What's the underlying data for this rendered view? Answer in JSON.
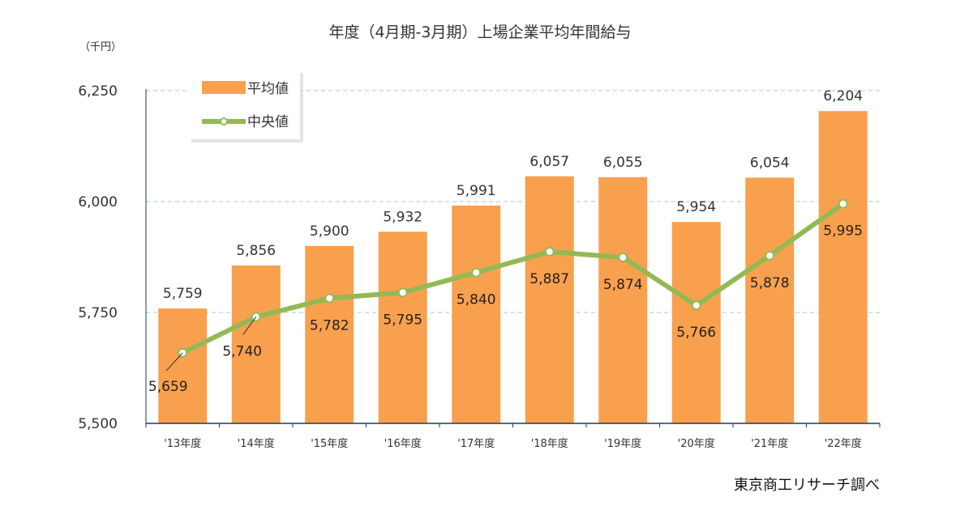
{
  "chart_data": {
    "type": "bar",
    "title": "年度（4月期-3月期）上場企業平均年間給与",
    "unit_label": "（千円）",
    "categories": [
      "'13年度",
      "'14年度",
      "'15年度",
      "'16年度",
      "'17年度",
      "'18年度",
      "'19年度",
      "'20年度",
      "'21年度",
      "'22年度"
    ],
    "series": [
      {
        "name": "平均値",
        "kind": "bar",
        "color": "#F9A04E",
        "values": [
          5759,
          5856,
          5900,
          5932,
          5991,
          6057,
          6055,
          5954,
          6054,
          6204
        ],
        "labels": [
          "5,759",
          "5,856",
          "5,900",
          "5,932",
          "5,991",
          "6,057",
          "6,055",
          "5,954",
          "6,054",
          "6,204"
        ]
      },
      {
        "name": "中央値",
        "kind": "line",
        "color": "#93B955",
        "values": [
          5659,
          5740,
          5782,
          5795,
          5840,
          5887,
          5874,
          5766,
          5878,
          5995
        ],
        "labels": [
          "5,659",
          "5,740",
          "5,782",
          "5,795",
          "5,840",
          "5,887",
          "5,874",
          "5,766",
          "5,878",
          "5,995"
        ]
      }
    ],
    "ylim": [
      5500,
      6250
    ],
    "yticks": [
      5500,
      5750,
      6000,
      6250
    ],
    "ytick_labels": [
      "5,500",
      "5,750",
      "6,000",
      "6,250"
    ],
    "grid": true,
    "legend_position": "top-left",
    "source_note": "東京商工リサーチ調べ"
  }
}
